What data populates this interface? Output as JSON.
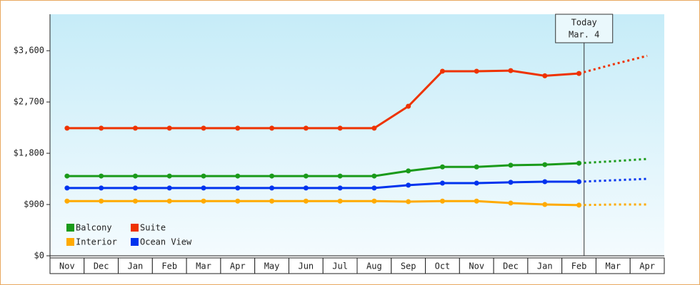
{
  "chart_data": {
    "type": "line",
    "categories": [
      "Nov",
      "Dec",
      "Jan",
      "Feb",
      "Mar",
      "Apr",
      "May",
      "Jun",
      "Jul",
      "Aug",
      "Sep",
      "Oct",
      "Nov",
      "Dec",
      "Jan",
      "Feb",
      "Mar",
      "Apr"
    ],
    "ylim": [
      0,
      4240
    ],
    "yticks": [
      {
        "value": 0,
        "label": "$0"
      },
      {
        "value": 900,
        "label": "$900"
      },
      {
        "value": 1800,
        "label": "$1,800"
      },
      {
        "value": 2700,
        "label": "$2,700"
      },
      {
        "value": 3600,
        "label": "$3,600"
      }
    ],
    "annotation": [
      "Today",
      "Mar. 4"
    ],
    "series": [
      {
        "name": "Balcony",
        "color": "#1a9a1a",
        "values": [
          1400,
          1400,
          1400,
          1400,
          1400,
          1400,
          1400,
          1400,
          1400,
          1400,
          1490,
          1560,
          1560,
          1590,
          1600,
          1625,
          null,
          null
        ],
        "forecast": [
          null,
          null,
          null,
          null,
          null,
          null,
          null,
          null,
          null,
          null,
          null,
          null,
          null,
          null,
          null,
          1625,
          1660,
          1700
        ]
      },
      {
        "name": "Suite",
        "color": "#ee3300",
        "values": [
          2240,
          2240,
          2240,
          2240,
          2240,
          2240,
          2240,
          2240,
          2240,
          2240,
          2625,
          3240,
          3240,
          3250,
          3160,
          3200,
          null,
          null
        ],
        "forecast": [
          null,
          null,
          null,
          null,
          null,
          null,
          null,
          null,
          null,
          null,
          null,
          null,
          null,
          null,
          null,
          3200,
          3360,
          3510
        ]
      },
      {
        "name": "Interior",
        "color": "#ffaa00",
        "values": [
          960,
          960,
          960,
          960,
          960,
          960,
          960,
          960,
          960,
          960,
          950,
          960,
          960,
          925,
          900,
          890,
          null,
          null
        ],
        "forecast": [
          null,
          null,
          null,
          null,
          null,
          null,
          null,
          null,
          null,
          null,
          null,
          null,
          null,
          null,
          null,
          890,
          900,
          900
        ]
      },
      {
        "name": "Ocean View",
        "color": "#0033ee",
        "values": [
          1190,
          1190,
          1190,
          1190,
          1190,
          1190,
          1190,
          1190,
          1190,
          1190,
          1240,
          1275,
          1275,
          1290,
          1300,
          1300,
          null,
          null
        ],
        "forecast": [
          null,
          null,
          null,
          null,
          null,
          null,
          null,
          null,
          null,
          null,
          null,
          null,
          null,
          null,
          null,
          1300,
          1325,
          1350
        ]
      }
    ]
  }
}
